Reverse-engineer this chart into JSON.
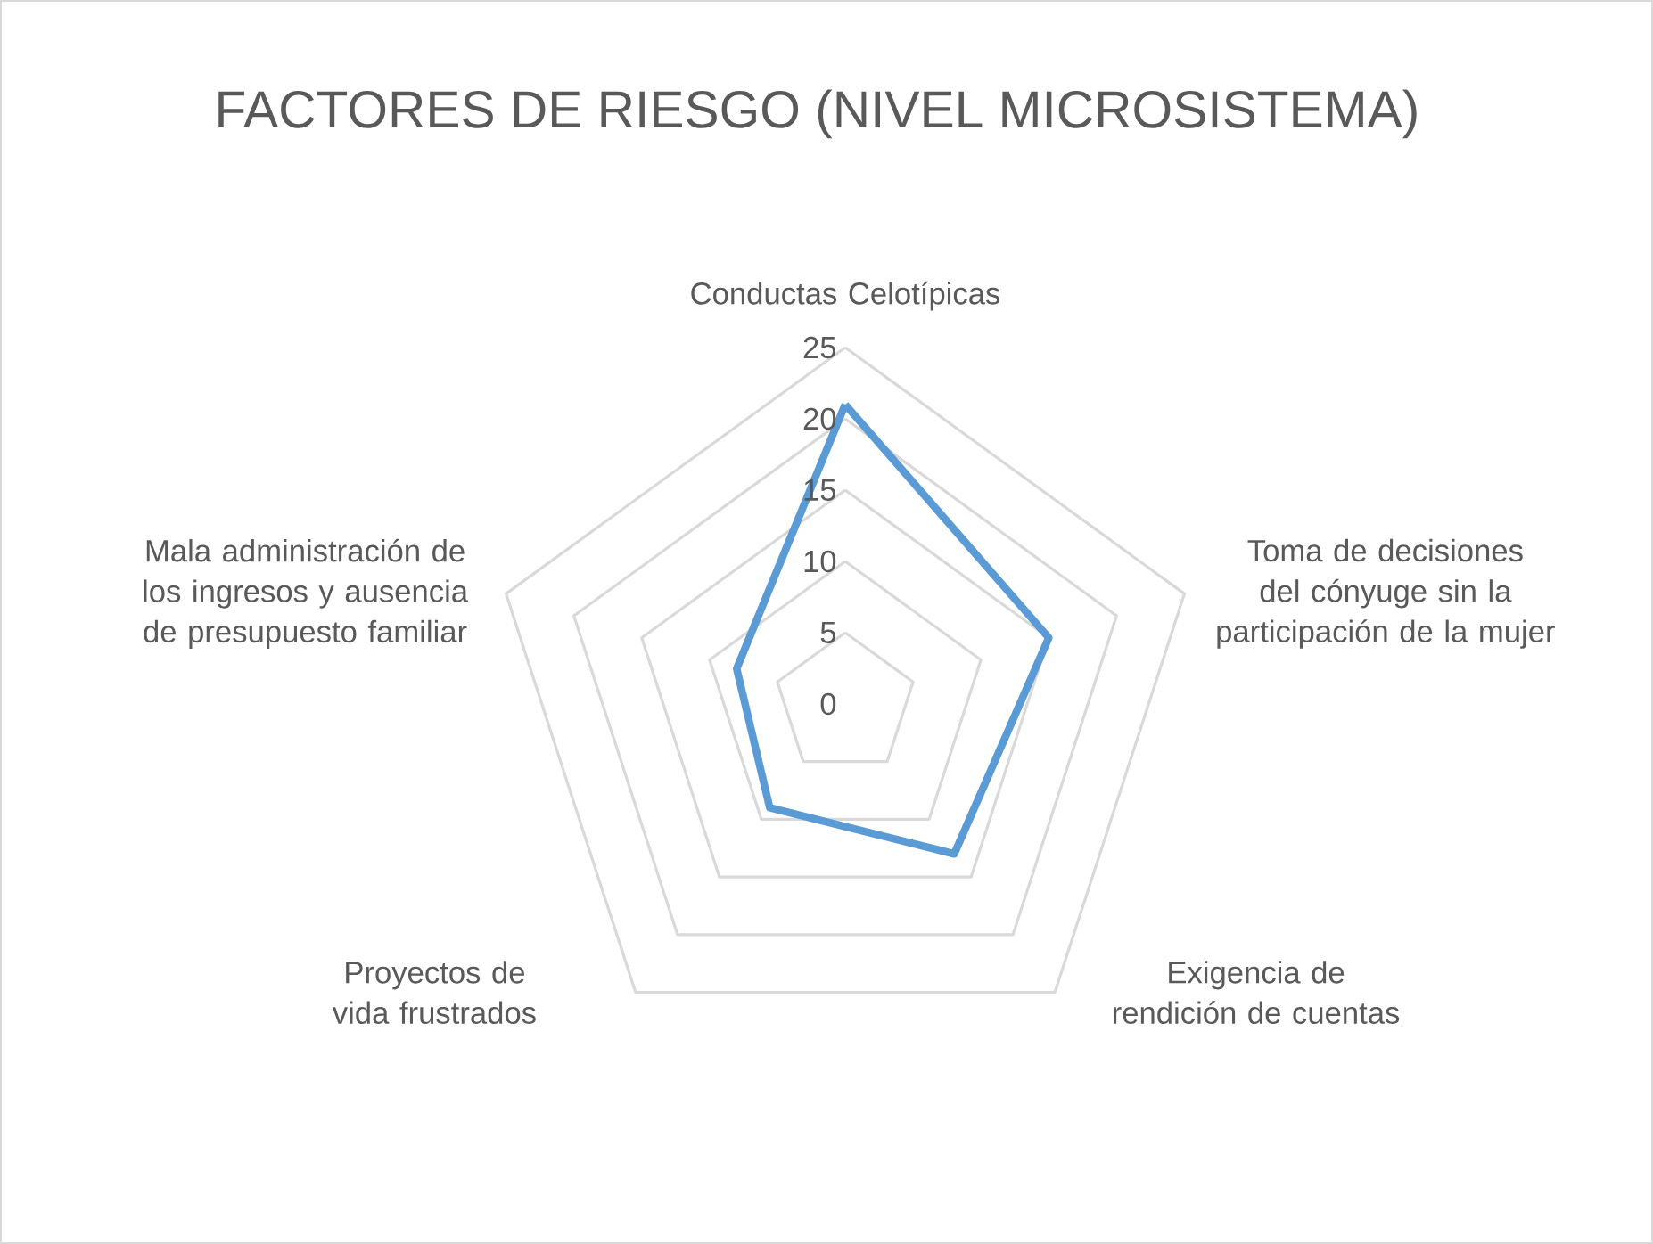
{
  "chart_data": {
    "type": "radar",
    "title": "FACTORES DE RIESGO (NIVEL MICROSISTEMA)",
    "categories": [
      "Conductas Celotípicas",
      "Toma de decisiones del cónyuge sin la participación de la mujer",
      "Exigencia de rendición de cuentas",
      "Proyectos de vida frustrados",
      "Mala administración de los ingresos y ausencia de presupuesto familiar"
    ],
    "series": [
      {
        "color": "#5b9bd5",
        "values": [
          21,
          15,
          13,
          9,
          8
        ]
      }
    ],
    "ylim": [
      0,
      25
    ],
    "yticks": [
      0,
      5,
      10,
      15,
      20,
      25
    ],
    "grid": true
  }
}
